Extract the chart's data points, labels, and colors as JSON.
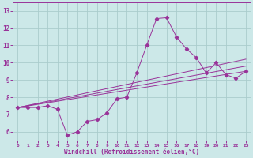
{
  "xlabel": "Windchill (Refroidissement éolien,°C)",
  "bg_color": "#cce8e8",
  "grid_color": "#aacccc",
  "line_color": "#993399",
  "xlim": [
    -0.5,
    23.5
  ],
  "ylim": [
    5.5,
    13.5
  ],
  "xticks": [
    0,
    1,
    2,
    3,
    4,
    5,
    6,
    7,
    8,
    9,
    10,
    11,
    12,
    13,
    14,
    15,
    16,
    17,
    18,
    19,
    20,
    21,
    22,
    23
  ],
  "yticks": [
    6,
    7,
    8,
    9,
    10,
    11,
    12,
    13
  ],
  "main_x": [
    0,
    1,
    2,
    3,
    4,
    5,
    6,
    7,
    8,
    9,
    10,
    11,
    12,
    13,
    14,
    15,
    16,
    17,
    18,
    19,
    20,
    21,
    22,
    23
  ],
  "main_y": [
    7.4,
    7.4,
    7.4,
    7.5,
    7.3,
    5.8,
    6.0,
    6.6,
    6.7,
    7.1,
    7.9,
    8.0,
    9.4,
    11.0,
    12.55,
    12.6,
    11.5,
    10.8,
    10.3,
    9.4,
    10.0,
    9.3,
    9.1,
    9.5
  ],
  "line1_x": [
    0,
    23
  ],
  "line1_y": [
    7.4,
    9.5
  ],
  "line2_x": [
    0,
    23
  ],
  "line2_y": [
    7.4,
    9.8
  ],
  "line3_x": [
    0,
    23
  ],
  "line3_y": [
    7.4,
    10.2
  ]
}
